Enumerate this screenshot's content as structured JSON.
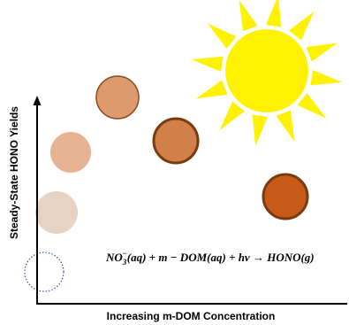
{
  "axes": {
    "y_label": "Steady-State HONO Yields",
    "x_label": "Increasing m-DOM Concentration"
  },
  "equation": {
    "species": "NO",
    "subscript": "3",
    "superscript": "−",
    "rest": "(aq) + m − DOM(aq) + hν → HONO(g)"
  }
}
